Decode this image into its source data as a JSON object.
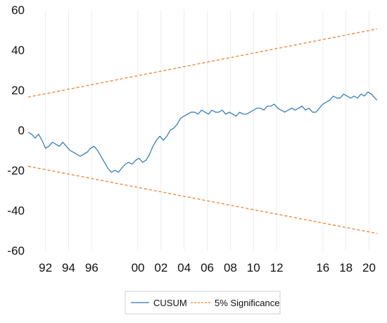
{
  "chart_data": {
    "type": "line",
    "title": "",
    "xlabel": "",
    "ylabel": "",
    "xlim": [
      1990.5,
      2020.7
    ],
    "ylim": [
      -60,
      60
    ],
    "x_ticks": [
      {
        "value": 1992,
        "label": "92"
      },
      {
        "value": 1994,
        "label": "94"
      },
      {
        "value": 1996,
        "label": "96"
      },
      {
        "value": 2000,
        "label": "00"
      },
      {
        "value": 2002,
        "label": "02"
      },
      {
        "value": 2004,
        "label": "04"
      },
      {
        "value": 2006,
        "label": "06"
      },
      {
        "value": 2008,
        "label": "08"
      },
      {
        "value": 2010,
        "label": "10"
      },
      {
        "value": 2012,
        "label": "12"
      },
      {
        "value": 2016,
        "label": "16"
      },
      {
        "value": 2018,
        "label": "18"
      },
      {
        "value": 2020,
        "label": "20"
      }
    ],
    "y_ticks": [
      {
        "value": 60,
        "label": "60"
      },
      {
        "value": 40,
        "label": "40"
      },
      {
        "value": 20,
        "label": "20"
      },
      {
        "value": 0,
        "label": "0"
      },
      {
        "value": -20,
        "label": "-20"
      },
      {
        "value": -40,
        "label": "-40"
      },
      {
        "value": -60,
        "label": "-60"
      }
    ],
    "grid": "vertical light",
    "legend_position": "bottom",
    "colors": {
      "cusum": "#2e75b6",
      "significance": "#f07f2d"
    },
    "series": [
      {
        "name": "CUSUM",
        "style": "solid",
        "x": [
          1990.5,
          1990.8,
          1991.1,
          1991.4,
          1991.7,
          1992.0,
          1992.3,
          1992.6,
          1992.9,
          1993.2,
          1993.5,
          1993.8,
          1994.1,
          1994.4,
          1994.7,
          1995.0,
          1995.3,
          1995.6,
          1995.9,
          1996.2,
          1996.5,
          1996.8,
          1997.1,
          1997.4,
          1997.7,
          1998.0,
          1998.3,
          1998.6,
          1998.9,
          1999.2,
          1999.5,
          1999.8,
          2000.1,
          2000.4,
          2000.7,
          2001.0,
          2001.3,
          2001.6,
          2001.9,
          2002.2,
          2002.5,
          2002.8,
          2003.1,
          2003.4,
          2003.7,
          2004.0,
          2004.3,
          2004.6,
          2004.9,
          2005.2,
          2005.5,
          2005.8,
          2006.1,
          2006.4,
          2006.7,
          2007.0,
          2007.3,
          2007.6,
          2007.9,
          2008.2,
          2008.5,
          2008.8,
          2009.1,
          2009.4,
          2009.7,
          2010.0,
          2010.3,
          2010.6,
          2010.9,
          2011.2,
          2011.5,
          2011.8,
          2012.1,
          2012.4,
          2012.7,
          2013.0,
          2013.3,
          2013.6,
          2013.9,
          2014.2,
          2014.5,
          2014.8,
          2015.1,
          2015.4,
          2015.7,
          2016.0,
          2016.3,
          2016.6,
          2016.9,
          2017.2,
          2017.5,
          2017.8,
          2018.1,
          2018.4,
          2018.7,
          2019.0,
          2019.3,
          2019.6,
          2019.9,
          2020.2,
          2020.5,
          2020.7
        ],
        "values": [
          -1,
          -2,
          -4,
          -2,
          -5,
          -9,
          -8,
          -6,
          -7,
          -8,
          -6,
          -8,
          -10,
          -11,
          -12,
          -13,
          -12,
          -11,
          -9,
          -8,
          -10,
          -13,
          -16,
          -19,
          -21,
          -20,
          -21,
          -19,
          -17,
          -16,
          -17,
          -15,
          -14,
          -16,
          -15,
          -12,
          -8,
          -5,
          -3,
          -5,
          -3,
          0,
          1,
          3,
          6,
          7,
          8,
          9,
          9,
          8,
          10,
          9,
          8,
          10,
          9,
          9,
          10,
          8,
          9,
          8,
          7,
          9,
          8,
          8,
          9,
          10,
          11,
          11,
          10,
          12,
          12,
          13,
          11,
          10,
          9,
          10,
          11,
          10,
          11,
          12,
          10,
          11,
          9,
          9,
          11,
          13,
          14,
          15,
          17,
          16,
          16,
          18,
          17,
          16,
          17,
          16,
          18,
          17,
          19,
          18,
          16,
          15
        ]
      },
      {
        "name": "5% Significance",
        "style": "dashed",
        "x": [
          1990.5,
          2020.7
        ],
        "values": [
          16.5,
          50.5
        ]
      },
      {
        "name": "5% Significance",
        "style": "dashed",
        "legend": false,
        "x": [
          1990.5,
          2020.7
        ],
        "values": [
          -18,
          -51.5
        ]
      }
    ]
  },
  "legend": {
    "items": [
      {
        "label": "CUSUM"
      },
      {
        "label": "5% Significance"
      }
    ]
  }
}
